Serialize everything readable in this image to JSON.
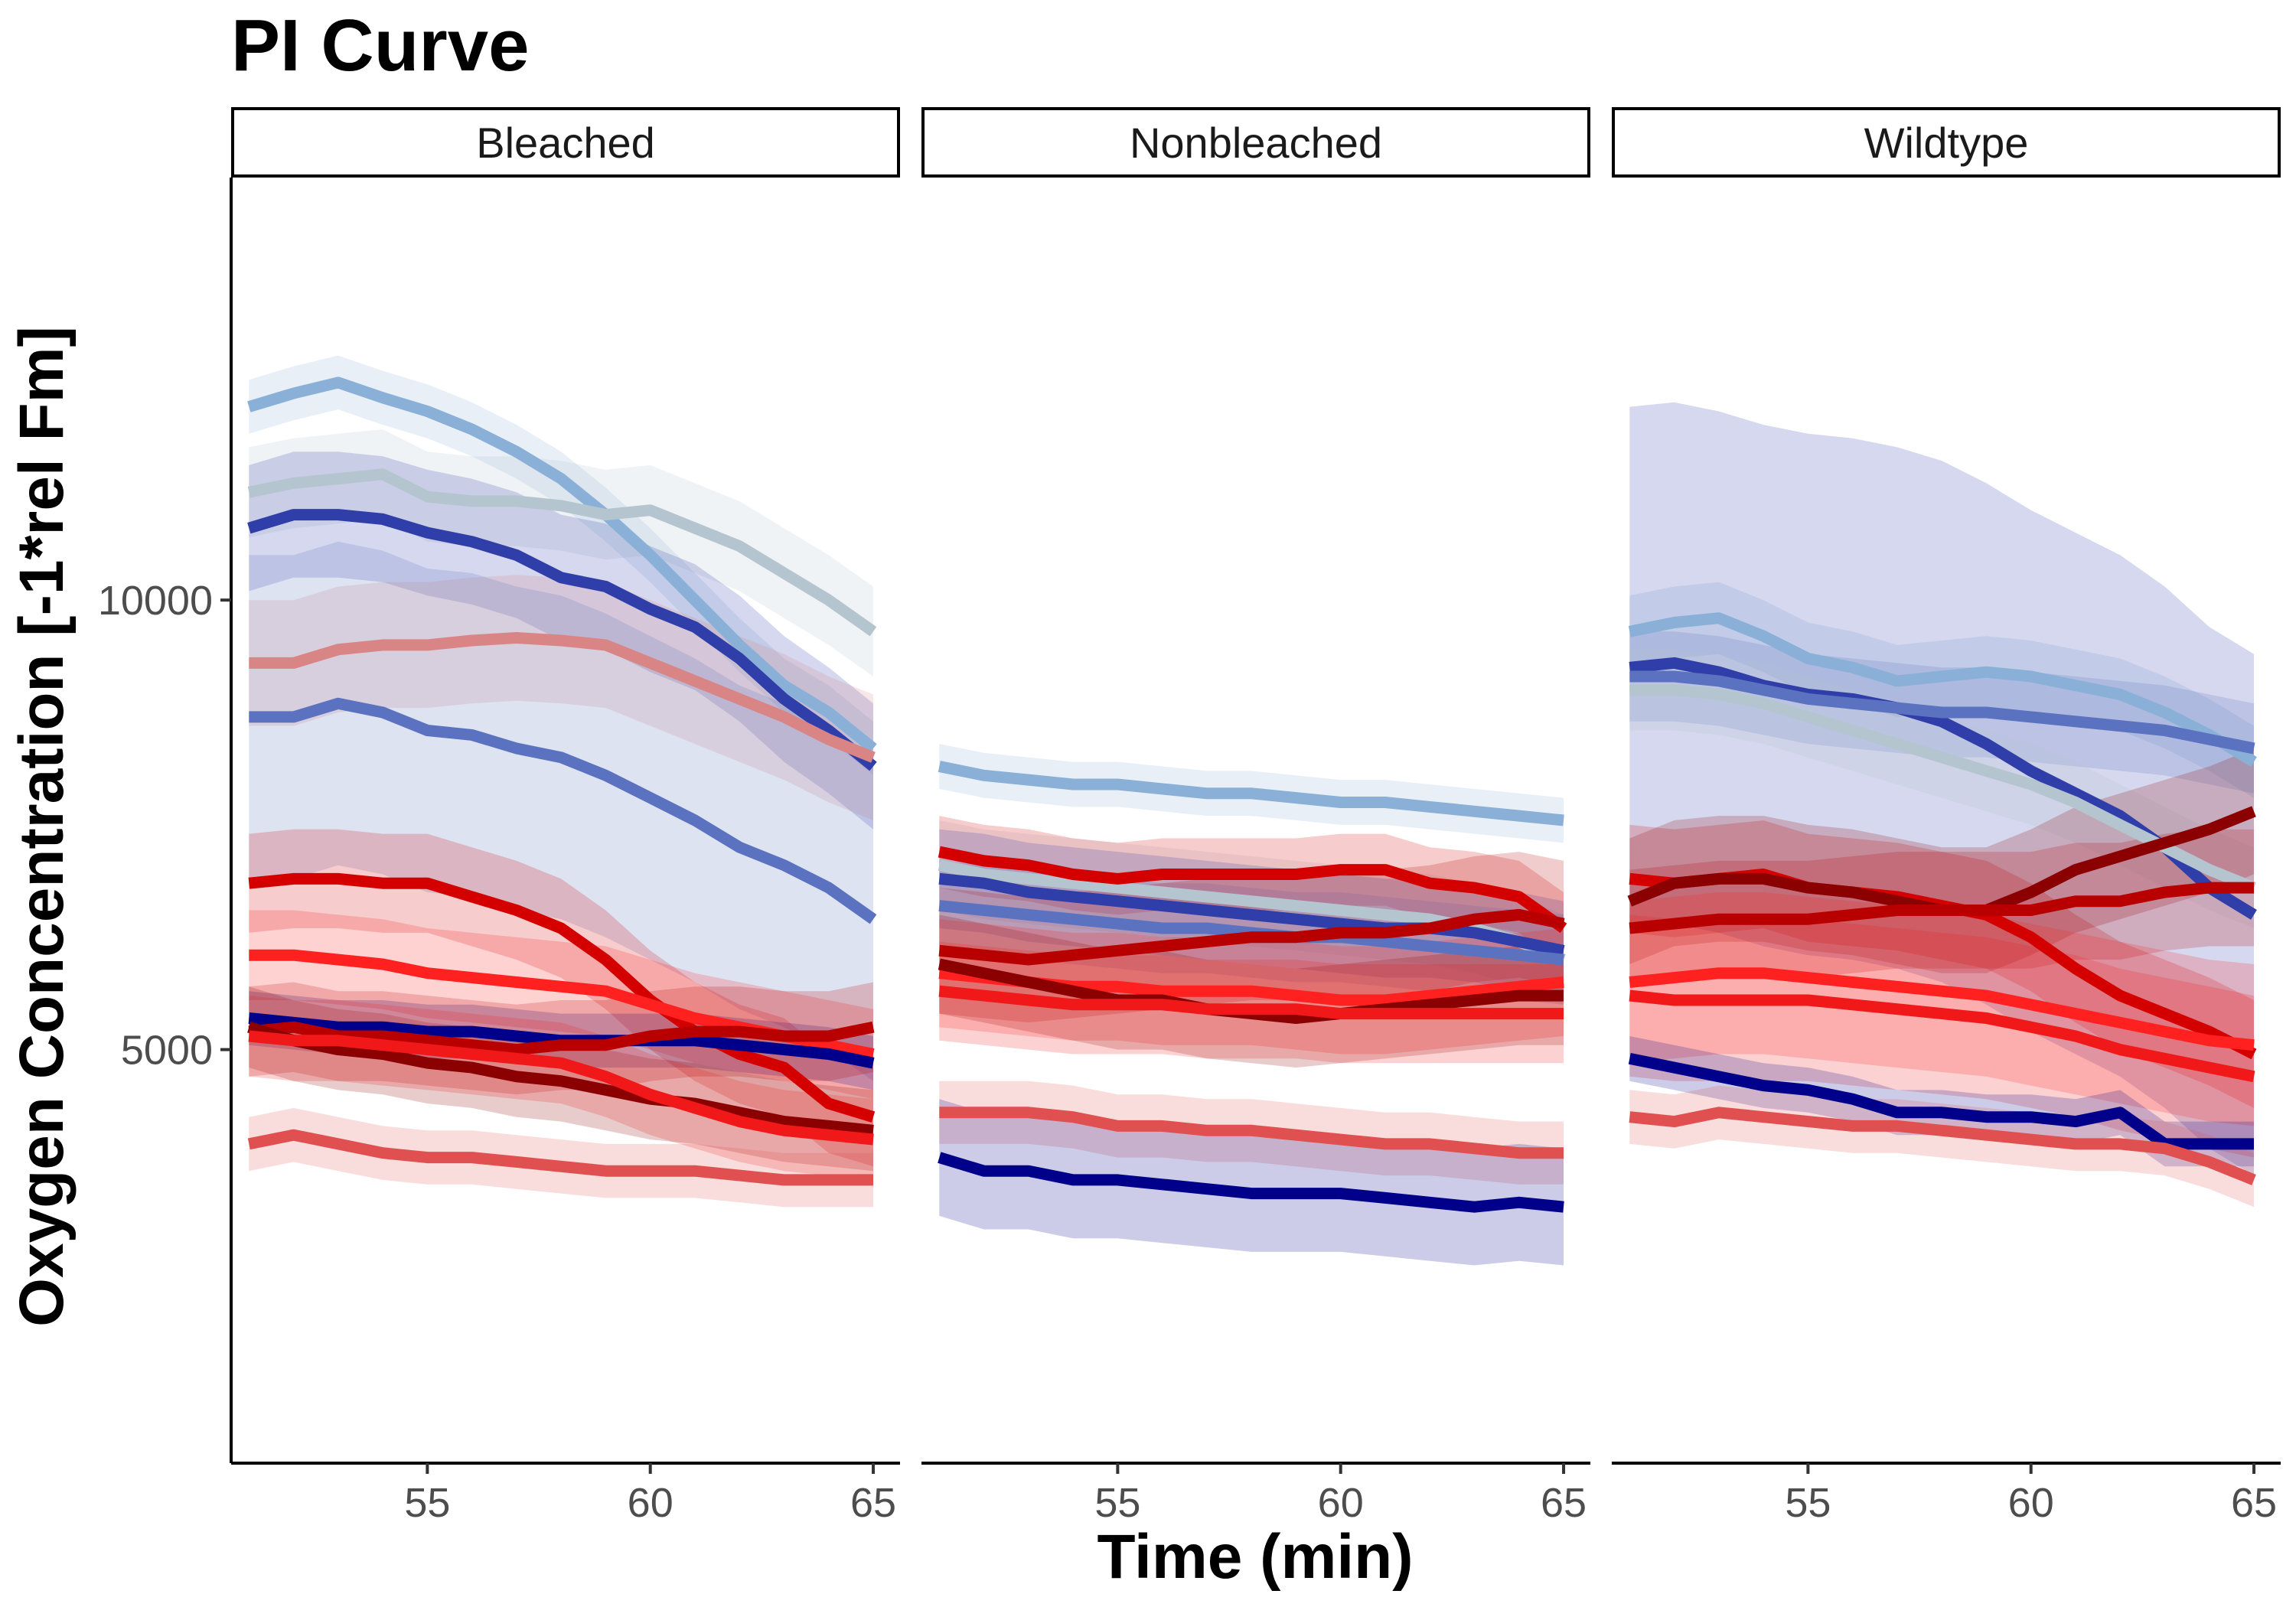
{
  "chart_data": {
    "type": "line",
    "title": "PI Curve",
    "xlabel": "Time (min)",
    "ylabel": "Oxygen Concentration [-1*rel Fm]",
    "xlim": [
      50.6,
      65.6
    ],
    "ylim": [
      400,
      14700
    ],
    "xticks": [
      55,
      60,
      65
    ],
    "yticks": [
      5000,
      10000
    ],
    "grid": false,
    "legend": "none",
    "x": [
      51,
      52,
      53,
      54,
      55,
      56,
      57,
      58,
      59,
      60,
      61,
      62,
      63,
      64,
      65
    ],
    "panels": [
      {
        "name": "Bleached",
        "series": [
          {
            "color": "#8ab0d8",
            "band": 300,
            "values": [
              12150,
              12300,
              12420,
              12250,
              12100,
              11900,
              11650,
              11350,
              10950,
              10500,
              10000,
              9500,
              9050,
              8750,
              8350
            ]
          },
          {
            "color": "#b5c5d0",
            "band": 500,
            "values": [
              11200,
              11300,
              11350,
              11400,
              11150,
              11100,
              11100,
              11050,
              10950,
              11000,
              10800,
              10600,
              10300,
              10000,
              9650
            ]
          },
          {
            "color": "#2f3ea8",
            "band": 700,
            "values": [
              10800,
              10950,
              10950,
              10900,
              10750,
              10650,
              10500,
              10250,
              10150,
              9900,
              9700,
              9350,
              8900,
              8550,
              8150
            ]
          },
          {
            "color": "#d98585",
            "band": 700,
            "values": [
              9300,
              9300,
              9450,
              9500,
              9500,
              9550,
              9580,
              9550,
              9500,
              9300,
              9100,
              8900,
              8700,
              8450,
              8250
            ]
          },
          {
            "color": "#5b72c0",
            "band": 1800,
            "values": [
              8700,
              8700,
              8850,
              8750,
              8550,
              8500,
              8350,
              8250,
              8050,
              7800,
              7550,
              7250,
              7050,
              6800,
              6450
            ]
          },
          {
            "color": "#d40000",
            "band": 550,
            "values": [
              6850,
              6900,
              6900,
              6850,
              6850,
              6700,
              6550,
              6350,
              6000,
              5550,
              5200,
              4950,
              4800,
              4400,
              4250
            ]
          },
          {
            "color": "#ff2020",
            "band": 500,
            "values": [
              6050,
              6050,
              6000,
              5950,
              5850,
              5800,
              5750,
              5700,
              5650,
              5500,
              5350,
              5250,
              5150,
              5050,
              4950
            ]
          },
          {
            "color": "#00008b",
            "band": 300,
            "values": [
              5350,
              5300,
              5250,
              5250,
              5200,
              5200,
              5150,
              5100,
              5100,
              5100,
              5100,
              5050,
              5000,
              4950,
              4850
            ]
          },
          {
            "color": "#b80000",
            "band": 500,
            "values": [
              5200,
              5250,
              5150,
              5150,
              5100,
              5050,
              5000,
              5050,
              5050,
              5150,
              5200,
              5200,
              5150,
              5150,
              5250
            ]
          },
          {
            "color": "#8b0000",
            "band": 450,
            "values": [
              5250,
              5100,
              5000,
              4950,
              4850,
              4800,
              4700,
              4650,
              4550,
              4450,
              4400,
              4300,
              4200,
              4150,
              4100
            ]
          },
          {
            "color": "#f01818",
            "band": 450,
            "values": [
              5150,
              5100,
              5100,
              5050,
              5000,
              4950,
              4900,
              4850,
              4700,
              4500,
              4350,
              4200,
              4100,
              4050,
              4000
            ]
          },
          {
            "color": "#e05050",
            "band": 300,
            "values": [
              3950,
              4050,
              3950,
              3850,
              3800,
              3800,
              3750,
              3700,
              3650,
              3650,
              3650,
              3600,
              3550,
              3550,
              3550
            ]
          }
        ]
      },
      {
        "name": "Nonbleached",
        "series": [
          {
            "color": "#8ab0d8",
            "band": 250,
            "values": [
              8150,
              8050,
              8000,
              7950,
              7950,
              7900,
              7850,
              7850,
              7800,
              7750,
              7750,
              7700,
              7650,
              7600,
              7550
            ]
          },
          {
            "color": "#b5c5d0",
            "band": 500,
            "values": [
              7050,
              6950,
              6900,
              6850,
              6800,
              6750,
              6700,
              6650,
              6600,
              6550,
              6500,
              6450,
              6350,
              6200,
              6000
            ]
          },
          {
            "color": "#d40000",
            "band": 400,
            "values": [
              7200,
              7100,
              7050,
              6950,
              6900,
              6950,
              6950,
              6950,
              6950,
              7000,
              7000,
              6850,
              6800,
              6700,
              6350
            ]
          },
          {
            "color": "#2f3ea8",
            "band": 550,
            "values": [
              6900,
              6850,
              6750,
              6700,
              6650,
              6600,
              6550,
              6500,
              6450,
              6400,
              6350,
              6350,
              6300,
              6200,
              6100
            ]
          },
          {
            "color": "#5b72c0",
            "band": 500,
            "values": [
              6600,
              6550,
              6500,
              6450,
              6400,
              6350,
              6350,
              6300,
              6250,
              6250,
              6200,
              6150,
              6100,
              6050,
              6000
            ]
          },
          {
            "color": "#b80000",
            "band": 700,
            "values": [
              6100,
              6050,
              6000,
              6050,
              6100,
              6150,
              6200,
              6250,
              6250,
              6300,
              6300,
              6350,
              6450,
              6500,
              6400
            ]
          },
          {
            "color": "#ff2020",
            "band": 600,
            "values": [
              5850,
              5800,
              5750,
              5700,
              5700,
              5650,
              5650,
              5650,
              5600,
              5550,
              5550,
              5600,
              5650,
              5700,
              5750
            ]
          },
          {
            "color": "#8b0000",
            "band": 550,
            "values": [
              5950,
              5850,
              5750,
              5650,
              5550,
              5550,
              5450,
              5400,
              5350,
              5400,
              5450,
              5500,
              5550,
              5600,
              5600
            ]
          },
          {
            "color": "#f01818",
            "band": 550,
            "values": [
              5650,
              5600,
              5550,
              5500,
              5500,
              5500,
              5450,
              5450,
              5450,
              5400,
              5400,
              5400,
              5400,
              5400,
              5400
            ]
          },
          {
            "color": "#e05050",
            "band": 350,
            "values": [
              4300,
              4300,
              4300,
              4250,
              4150,
              4150,
              4100,
              4100,
              4050,
              4000,
              3950,
              3950,
              3900,
              3850,
              3850
            ]
          },
          {
            "color": "#00008b",
            "band": 650,
            "values": [
              3800,
              3650,
              3650,
              3550,
              3550,
              3500,
              3450,
              3400,
              3400,
              3400,
              3350,
              3300,
              3250,
              3300,
              3250
            ]
          }
        ]
      },
      {
        "name": "Wildtype",
        "series": [
          {
            "color": "#8ab0d8",
            "band": 400,
            "values": [
              9650,
              9750,
              9800,
              9600,
              9350,
              9250,
              9100,
              9150,
              9200,
              9150,
              9050,
              8950,
              8750,
              8500,
              8200
            ]
          },
          {
            "color": "#2f3ea8",
            "band": 2900,
            "values": [
              9250,
              9300,
              9200,
              9050,
              8950,
              8900,
              8800,
              8650,
              8400,
              8100,
              7850,
              7600,
              7250,
              6800,
              6500
            ]
          },
          {
            "color": "#5b72c0",
            "band": 500,
            "values": [
              9150,
              9150,
              9100,
              9000,
              8900,
              8850,
              8800,
              8750,
              8750,
              8700,
              8650,
              8600,
              8550,
              8450,
              8350
            ]
          },
          {
            "color": "#b5c5d0",
            "band": 450,
            "values": [
              9000,
              9000,
              8950,
              8850,
              8700,
              8550,
              8400,
              8250,
              8100,
              7950,
              7750,
              7500,
              7250,
              7000,
              6800
            ]
          },
          {
            "color": "#d40000",
            "band": 600,
            "values": [
              6900,
              6850,
              6900,
              6950,
              6800,
              6750,
              6700,
              6600,
              6500,
              6250,
              5900,
              5600,
              5400,
              5200,
              4950
            ]
          },
          {
            "color": "#8b0000",
            "band": 700,
            "values": [
              6650,
              6850,
              6900,
              6900,
              6800,
              6750,
              6650,
              6550,
              6550,
              6750,
              7000,
              7150,
              7300,
              7450,
              7650
            ]
          },
          {
            "color": "#b80000",
            "band": 650,
            "values": [
              6350,
              6400,
              6450,
              6450,
              6450,
              6500,
              6550,
              6550,
              6550,
              6550,
              6650,
              6650,
              6750,
              6800,
              6800
            ]
          },
          {
            "color": "#ff2020",
            "band": 900,
            "values": [
              5750,
              5800,
              5850,
              5850,
              5800,
              5750,
              5700,
              5650,
              5600,
              5500,
              5400,
              5300,
              5200,
              5100,
              5050
            ]
          },
          {
            "color": "#f01818",
            "band": 900,
            "values": [
              5600,
              5550,
              5550,
              5550,
              5550,
              5500,
              5450,
              5400,
              5350,
              5250,
              5150,
              5000,
              4900,
              4800,
              4700
            ]
          },
          {
            "color": "#00008b",
            "band": 250,
            "values": [
              4900,
              4800,
              4700,
              4600,
              4550,
              4450,
              4300,
              4300,
              4250,
              4250,
              4200,
              4300,
              3950,
              3950,
              3950
            ]
          },
          {
            "color": "#e05050",
            "band": 300,
            "values": [
              4250,
              4200,
              4300,
              4250,
              4200,
              4150,
              4150,
              4100,
              4050,
              4000,
              3950,
              3950,
              3900,
              3750,
              3550
            ]
          }
        ]
      }
    ]
  }
}
